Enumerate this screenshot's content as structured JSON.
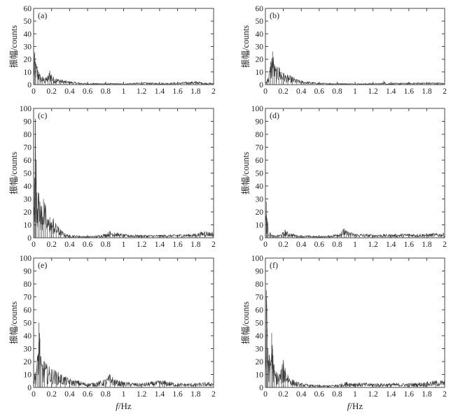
{
  "figure": {
    "ylabel": "振幅/counts",
    "xlabel_italic": "f",
    "xlabel_rest": "/Hz"
  },
  "chart_data": [
    {
      "type": "line",
      "label": "(a)",
      "xlim": [
        0,
        2
      ],
      "ylim": [
        0,
        60
      ],
      "xticks": [
        "0",
        "0.2",
        "0.4",
        "0.6",
        "0.8",
        "1",
        "1.2",
        "1.4",
        "1.6",
        "1.8",
        "2"
      ],
      "yticks": [
        "0",
        "10",
        "20",
        "30",
        "40",
        "50",
        "60"
      ],
      "x": [
        0,
        0.01,
        0.02,
        0.04,
        0.06,
        0.08,
        0.1,
        0.13,
        0.16,
        0.18,
        0.2,
        0.22,
        0.25,
        0.3,
        0.35,
        0.4,
        0.5,
        0.6,
        0.8,
        1.0,
        1.2,
        1.4,
        1.6,
        1.7,
        1.8,
        1.9,
        2.0
      ],
      "y": [
        12,
        24,
        18,
        14,
        10,
        6,
        6,
        5,
        7,
        11,
        8,
        6,
        5,
        4,
        3,
        2.5,
        1.5,
        1,
        1,
        0.8,
        1.5,
        1.2,
        1.5,
        2,
        2.5,
        1.5,
        1
      ]
    },
    {
      "type": "line",
      "label": "(b)",
      "xlim": [
        0,
        2
      ],
      "ylim": [
        0,
        60
      ],
      "xticks": [
        "0",
        "0.2",
        "0.4",
        "0.6",
        "0.8",
        "1",
        "1.2",
        "1.4",
        "1.6",
        "1.8",
        "2"
      ],
      "yticks": [
        "0",
        "10",
        "20",
        "30",
        "40",
        "50",
        "60"
      ],
      "x": [
        0,
        0.02,
        0.04,
        0.06,
        0.08,
        0.1,
        0.12,
        0.15,
        0.18,
        0.2,
        0.25,
        0.3,
        0.35,
        0.4,
        0.5,
        0.6,
        0.8,
        1.0,
        1.2,
        1.3,
        1.32,
        1.34,
        1.5,
        1.7,
        1.9,
        2.0
      ],
      "y": [
        2,
        4,
        8,
        18,
        26,
        16,
        12,
        14,
        10,
        9,
        7,
        6,
        4,
        3,
        2,
        1.2,
        1,
        0.8,
        1,
        1,
        3,
        1,
        1.2,
        1.5,
        1.5,
        1.2
      ]
    },
    {
      "type": "line",
      "label": "(c)",
      "xlim": [
        0,
        2
      ],
      "ylim": [
        0,
        100
      ],
      "xticks": [
        "0",
        "0.2",
        "0.4",
        "0.6",
        "0.8",
        "1",
        "1.2",
        "1.4",
        "1.6",
        "1.8",
        "2"
      ],
      "yticks": [
        "0",
        "10",
        "20",
        "30",
        "40",
        "50",
        "60",
        "70",
        "80",
        "90",
        "100"
      ],
      "x": [
        0,
        0.01,
        0.02,
        0.03,
        0.05,
        0.07,
        0.09,
        0.11,
        0.13,
        0.15,
        0.18,
        0.2,
        0.22,
        0.25,
        0.28,
        0.3,
        0.35,
        0.4,
        0.5,
        0.6,
        0.7,
        0.8,
        0.85,
        0.9,
        1.0,
        1.2,
        1.4,
        1.6,
        1.8,
        1.9,
        2.0
      ],
      "y": [
        15,
        40,
        92,
        60,
        35,
        28,
        24,
        30,
        24,
        14,
        16,
        12,
        15,
        10,
        8,
        6,
        3,
        2,
        1.5,
        1,
        1.5,
        3,
        5,
        4,
        2.5,
        2,
        2,
        2.5,
        3,
        5,
        4
      ]
    },
    {
      "type": "line",
      "label": "(d)",
      "xlim": [
        0,
        2
      ],
      "ylim": [
        0,
        100
      ],
      "xticks": [
        "0",
        "0.2",
        "0.4",
        "0.6",
        "0.8",
        "1",
        "1.2",
        "1.4",
        "1.6",
        "1.8",
        "2"
      ],
      "yticks": [
        "0",
        "10",
        "20",
        "30",
        "40",
        "50",
        "60",
        "70",
        "80",
        "90",
        "100"
      ],
      "x": [
        0,
        0.01,
        0.02,
        0.03,
        0.05,
        0.08,
        0.1,
        0.15,
        0.2,
        0.22,
        0.25,
        0.3,
        0.35,
        0.4,
        0.5,
        0.6,
        0.7,
        0.8,
        0.85,
        0.88,
        0.9,
        0.95,
        1.0,
        1.2,
        1.4,
        1.6,
        1.8,
        2.0
      ],
      "y": [
        10,
        28,
        15,
        8,
        4,
        2,
        1.5,
        2,
        4,
        6,
        4,
        3,
        2,
        1.5,
        1.5,
        1,
        1.5,
        3,
        5,
        7,
        5,
        4,
        3,
        2.5,
        2.5,
        3,
        3,
        3.5
      ]
    },
    {
      "type": "line",
      "label": "(e)",
      "xlim": [
        0,
        2
      ],
      "ylim": [
        0,
        100
      ],
      "xticks": [
        "0",
        "0.2",
        "0.4",
        "0.6",
        "0.8",
        "1",
        "1.2",
        "1.4",
        "1.6",
        "1.8",
        "2"
      ],
      "yticks": [
        "0",
        "10",
        "20",
        "30",
        "40",
        "50",
        "60",
        "70",
        "80",
        "90",
        "100"
      ],
      "x": [
        0,
        0.02,
        0.04,
        0.06,
        0.07,
        0.08,
        0.1,
        0.12,
        0.15,
        0.2,
        0.25,
        0.3,
        0.35,
        0.4,
        0.5,
        0.6,
        0.7,
        0.8,
        0.85,
        0.9,
        1.0,
        1.2,
        1.4,
        1.45,
        1.6,
        1.8,
        2.0
      ],
      "y": [
        8,
        12,
        20,
        50,
        38,
        22,
        18,
        20,
        16,
        14,
        12,
        10,
        8,
        6,
        5,
        3,
        4,
        6,
        10,
        6,
        4,
        3,
        5,
        5,
        3,
        3,
        4
      ]
    },
    {
      "type": "line",
      "label": "(f)",
      "xlim": [
        0,
        2
      ],
      "ylim": [
        0,
        100
      ],
      "xticks": [
        "0",
        "0.2",
        "0.4",
        "0.6",
        "0.8",
        "1",
        "1.2",
        "1.4",
        "1.6",
        "1.8",
        "2"
      ],
      "yticks": [
        "0",
        "10",
        "20",
        "30",
        "40",
        "50",
        "60",
        "70",
        "80",
        "90",
        "100"
      ],
      "x": [
        0,
        0.01,
        0.02,
        0.03,
        0.05,
        0.07,
        0.08,
        0.1,
        0.12,
        0.15,
        0.18,
        0.2,
        0.22,
        0.25,
        0.3,
        0.35,
        0.4,
        0.5,
        0.6,
        0.7,
        0.8,
        0.85,
        0.9,
        1.0,
        1.2,
        1.4,
        1.6,
        1.8,
        1.9,
        2.0
      ],
      "y": [
        15,
        75,
        45,
        30,
        20,
        42,
        30,
        14,
        12,
        10,
        14,
        20,
        15,
        10,
        6,
        4,
        3,
        2,
        1.5,
        1.5,
        2,
        3,
        4,
        3.5,
        3,
        3,
        3,
        4,
        5,
        5
      ]
    }
  ]
}
